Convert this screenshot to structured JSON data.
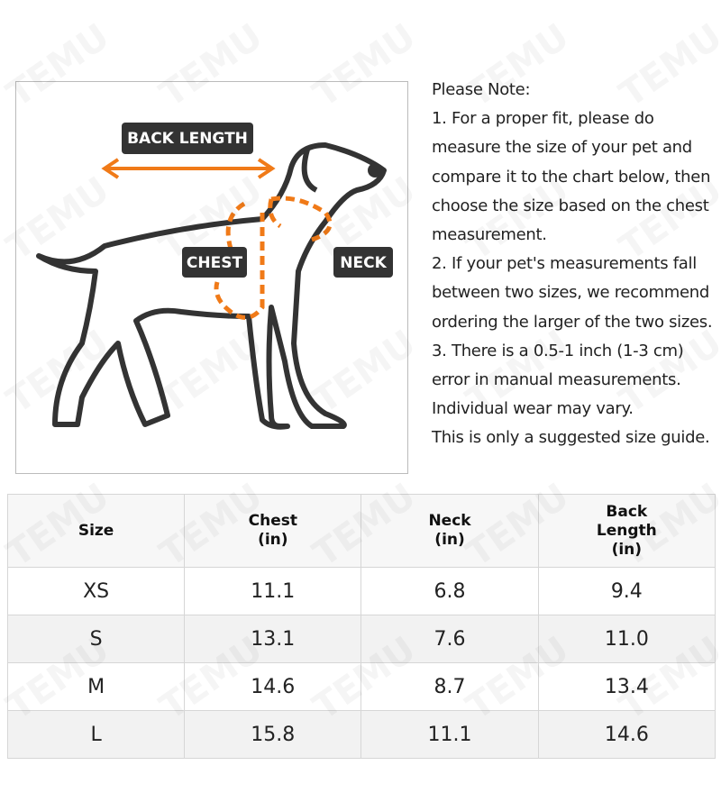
{
  "watermark": "TEMU",
  "diagram": {
    "labels": {
      "back_length": "BACK LENGTH",
      "chest": "CHEST",
      "neck": "NECK"
    }
  },
  "note": {
    "lines": [
      "Please Note:",
      "1. For a proper fit, please do",
      "measure the size of your pet and",
      "compare it to the chart below, then",
      "choose the size based on the chest",
      "measurement.",
      "2. If your pet's measurements fall",
      "between two sizes, we recommend",
      "ordering the larger of the two sizes.",
      "3. There is a 0.5-1 inch (1-3 cm)",
      "error in manual measurements.",
      "Individual wear may vary.",
      "This is only a suggested size guide."
    ]
  },
  "table": {
    "header": [
      "Size",
      "Chest (in)",
      "Neck (in)",
      "Back Length (in)"
    ],
    "rows": [
      [
        "XS",
        "11.1",
        "6.8",
        "9.4"
      ],
      [
        "S",
        "13.1",
        "7.6",
        "11.0"
      ],
      [
        "M",
        "14.6",
        "8.7",
        "13.4"
      ],
      [
        "L",
        "15.8",
        "11.1",
        "14.6"
      ]
    ]
  }
}
